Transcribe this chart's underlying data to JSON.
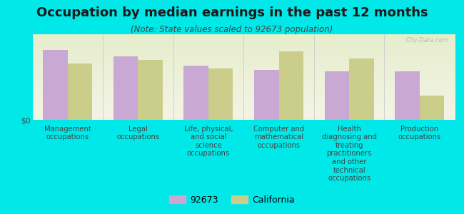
{
  "title": "Occupation by median earnings in the past 12 months",
  "subtitle": "(Note: State values scaled to 92673 population)",
  "categories": [
    "Management\noccupations",
    "Legal\noccupations",
    "Life, physical,\nand social\nscience\noccupations",
    "Computer and\nmathematical\noccupations",
    "Health\ndiagnosing and\ntreating\npractitioners\nand other\ntechnical\noccupations",
    "Production\noccupations"
  ],
  "values_92673": [
    0.82,
    0.74,
    0.63,
    0.58,
    0.57,
    0.57
  ],
  "values_california": [
    0.66,
    0.7,
    0.6,
    0.8,
    0.72,
    0.28
  ],
  "color_92673": "#c9a8d4",
  "color_california": "#cace8a",
  "background_color": "#00e8e8",
  "plot_bg_top": "#f4f4e6",
  "plot_bg_bottom": "#e6eecc",
  "ylabel": "$0",
  "legend_label_92673": "92673",
  "legend_label_california": "California",
  "bar_width": 0.35,
  "title_fontsize": 13,
  "subtitle_fontsize": 8.5,
  "tick_fontsize": 7.2,
  "legend_fontsize": 9,
  "watermark": "City-Data.com"
}
